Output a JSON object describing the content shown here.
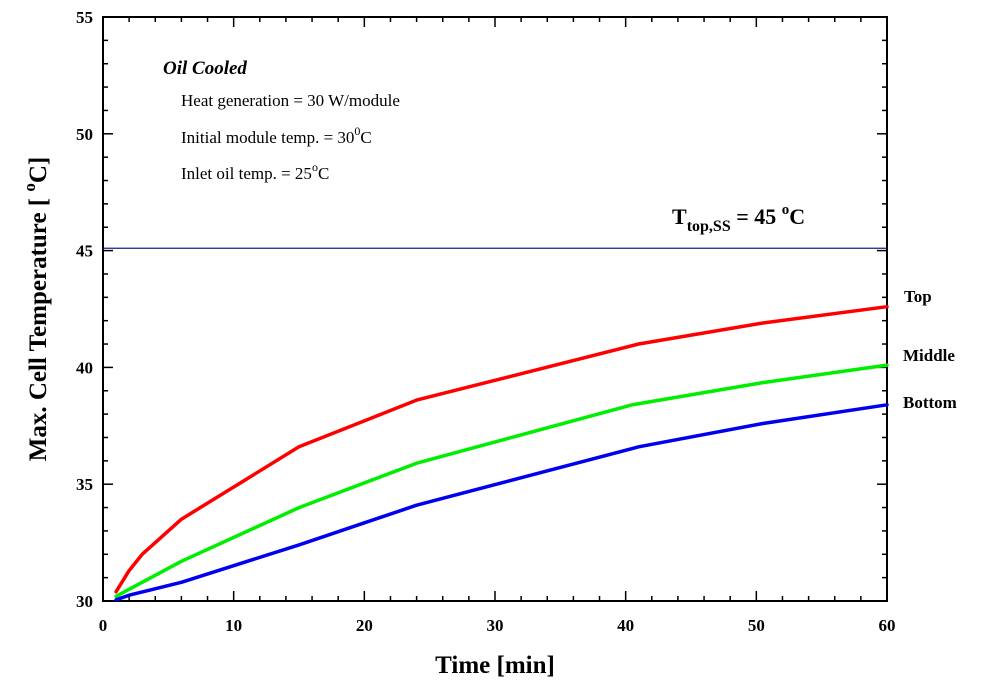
{
  "chart_data": {
    "type": "line",
    "title": "",
    "xlabel": "Time [min]",
    "ylabel_main": "Max. Cell Temperature [ ",
    "ylabel_sup": "o",
    "ylabel_tail": "C]",
    "xlim": [
      0,
      60
    ],
    "ylim": [
      30,
      55
    ],
    "xticks": [
      0,
      10,
      20,
      30,
      40,
      50,
      60
    ],
    "yticks": [
      30,
      35,
      40,
      45,
      50,
      55
    ],
    "grid": false,
    "legend": "none",
    "series": [
      {
        "name": "Top",
        "color": "#ff0000",
        "x": [
          1,
          2,
          3,
          6,
          15,
          24,
          41,
          50.5,
          60
        ],
        "y": [
          30.4,
          31.3,
          32.0,
          33.5,
          36.6,
          38.6,
          41.0,
          41.9,
          42.6
        ]
      },
      {
        "name": "Middle",
        "color": "#00ee00",
        "x": [
          1,
          2,
          6,
          15,
          24,
          40.5,
          50.5,
          60
        ],
        "y": [
          30.2,
          30.5,
          31.7,
          34.0,
          35.9,
          38.4,
          39.35,
          40.1
        ]
      },
      {
        "name": "Bottom",
        "color": "#0000ee",
        "x": [
          1,
          2,
          6,
          15,
          24,
          41,
          50.5,
          60
        ],
        "y": [
          30.05,
          30.25,
          30.8,
          32.4,
          34.1,
          36.6,
          37.6,
          38.4
        ]
      }
    ],
    "reference_line": {
      "y": 45.1,
      "color": "#1a237e",
      "label_main": "T",
      "label_sub": "top,SS",
      "label_value": " = 45 ",
      "label_sup": "o",
      "label_unit": "C"
    },
    "annotations": {
      "title": "Oil Cooled",
      "heat_line": "Heat generation = 30 W/module",
      "initial_main": "Initial module temp. = 30",
      "initial_sup": "0",
      "initial_unit": "C",
      "inlet_main": "Inlet oil temp. = 25",
      "inlet_sup": "o",
      "inlet_unit": "C"
    }
  }
}
